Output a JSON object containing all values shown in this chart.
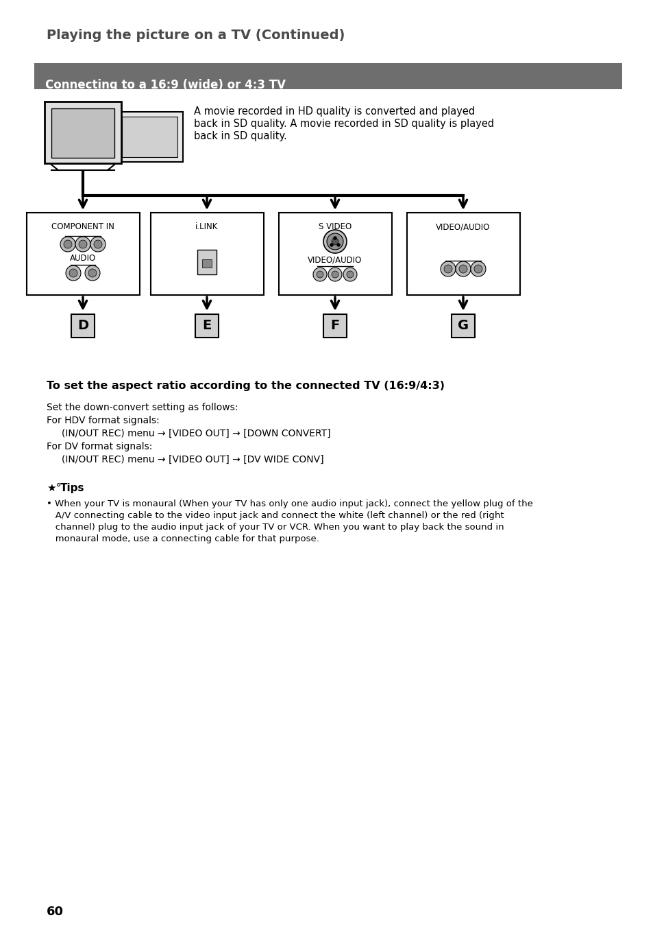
{
  "page_title": "Playing the picture on a TV (Continued)",
  "section_title": "Connecting to a 16:9 (wide) or 4:3 TV",
  "section_bg": "#6e6e6e",
  "description_line1": "A movie recorded in HD quality is converted and played",
  "description_line2": "back in SD quality. A movie recorded in SD quality is played",
  "description_line3": "back in SD quality.",
  "connector_labels": [
    "COMPONENT IN",
    "i.LINK",
    "S VIDEO",
    "VIDEO/AUDIO"
  ],
  "letter_labels": [
    "D",
    "E",
    "F",
    "G"
  ],
  "heading2": "To set the aspect ratio according to the connected TV (16:9/4:3)",
  "body_line1": "Set the down-convert setting as follows:",
  "body_line2": "For HDV format signals:",
  "body_line3": "     (IN/OUT REC) menu → [VIDEO OUT] → [DOWN CONVERT]",
  "body_line4": "For DV format signals:",
  "body_line5": "     (IN/OUT REC) menu → [VIDEO OUT] → [DV WIDE CONV]",
  "tips_title": "Tips",
  "tips_bullet": "When your TV is monaural (When your TV has only one audio input jack), connect the yellow plug of the",
  "tips_line2": "A/V connecting cable to the video input jack and connect the white (left channel) or the red (right",
  "tips_line3": "channel) plug to the audio input jack of your TV or VCR. When you want to play back the sound in",
  "tips_line4": "monaural mode, use a connecting cable for that purpose.",
  "page_number": "60",
  "bg_color": "#ffffff",
  "text_color": "#000000"
}
